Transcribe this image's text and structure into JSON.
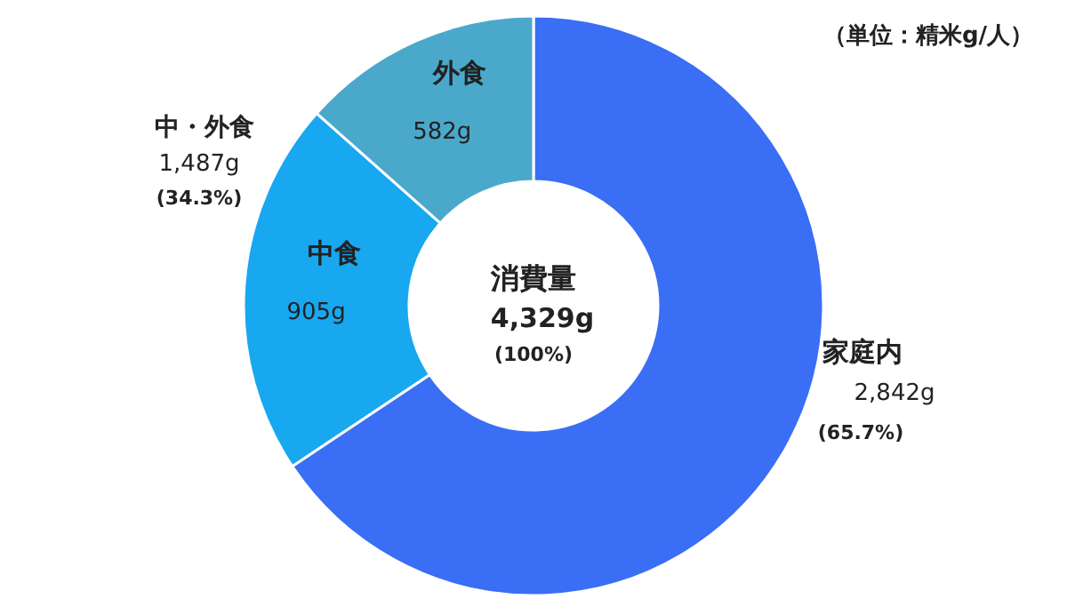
{
  "chart_data": {
    "type": "donut",
    "categories": [
      "家庭内",
      "中食",
      "外食"
    ],
    "values": [
      2842,
      905,
      582
    ],
    "colors": [
      "#3a6ef5",
      "#17a8f0",
      "#4aa9cb"
    ],
    "value_labels": [
      "2,842g",
      "905g",
      "582g"
    ],
    "annotations": [
      "(65.7%)",
      "中・外食",
      "1,487g",
      "(34.3%)",
      "消費量",
      "4,329g",
      "(100%)",
      "（単位：精米g/人）"
    ]
  }
}
